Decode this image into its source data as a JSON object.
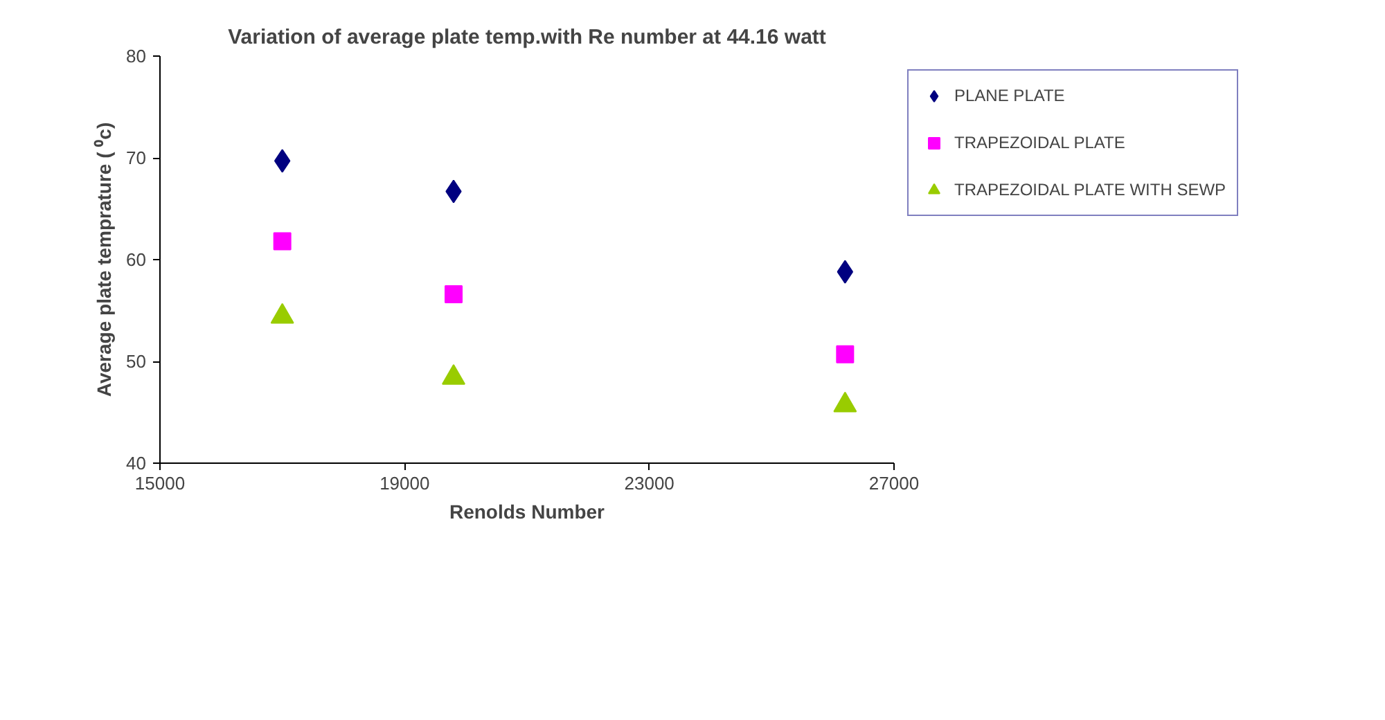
{
  "chart_data": {
    "type": "scatter",
    "title": "Variation of average plate temp.with Re number at 44.16 watt",
    "xlabel": "Renolds Number",
    "ylabel": "Average plate temprature ( ⁰c)",
    "x": [
      17000,
      19800,
      26200
    ],
    "series": [
      {
        "name": "PLANE PLATE",
        "color": "#000080",
        "marker": "diamond",
        "values": [
          69.7,
          66.7,
          58.8
        ]
      },
      {
        "name": "TRAPEZOIDAL PLATE",
        "color": "#ff00ff",
        "marker": "square",
        "values": [
          61.8,
          56.6,
          50.7
        ]
      },
      {
        "name": "TRAPEZOIDAL PLATE WITH SEWP",
        "color": "#99cc00",
        "marker": "triangle",
        "values": [
          54.4,
          48.4,
          45.7
        ]
      }
    ],
    "xlim": [
      15000,
      27000
    ],
    "xticks": [
      15000,
      19000,
      23000,
      27000
    ],
    "ylim": [
      40,
      80
    ],
    "yticks": [
      40,
      50,
      60,
      70,
      80
    ],
    "grid": false,
    "legend": "top right"
  }
}
